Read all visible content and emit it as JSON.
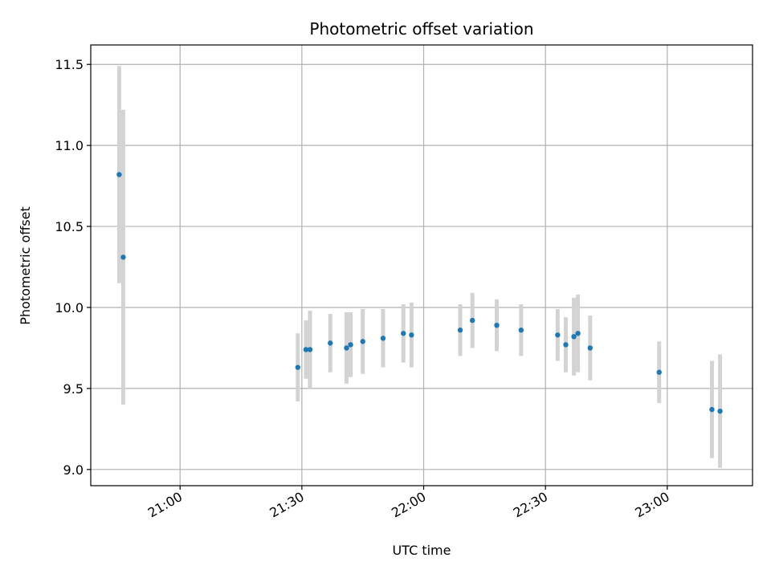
{
  "chart_data": {
    "type": "scatter",
    "title": "Photometric offset variation",
    "xlabel": "UTC time",
    "ylabel": "Photometric offset",
    "x_axis_kind": "time",
    "xlim": [
      "20:38",
      "23:21"
    ],
    "ylim": [
      8.9,
      11.62
    ],
    "grid": true,
    "x_ticks": [
      "21:00",
      "21:30",
      "22:00",
      "22:30",
      "23:00"
    ],
    "y_ticks": [
      "9.0",
      "9.5",
      "10.0",
      "10.5",
      "11.0",
      "11.5"
    ],
    "marker_color": "#1f77b4",
    "errorbar_color": "#d3d3d3",
    "points": [
      {
        "x": "20:45",
        "y": 10.82,
        "err": 0.67
      },
      {
        "x": "20:46",
        "y": 10.31,
        "err": 0.91
      },
      {
        "x": "21:29",
        "y": 9.63,
        "err": 0.21
      },
      {
        "x": "21:31",
        "y": 9.74,
        "err": 0.18
      },
      {
        "x": "21:32",
        "y": 9.74,
        "err": 0.24
      },
      {
        "x": "21:37",
        "y": 9.78,
        "err": 0.18
      },
      {
        "x": "21:41",
        "y": 9.75,
        "err": 0.22
      },
      {
        "x": "21:42",
        "y": 9.77,
        "err": 0.2
      },
      {
        "x": "21:45",
        "y": 9.79,
        "err": 0.2
      },
      {
        "x": "21:50",
        "y": 9.81,
        "err": 0.18
      },
      {
        "x": "21:55",
        "y": 9.84,
        "err": 0.18
      },
      {
        "x": "21:57",
        "y": 9.83,
        "err": 0.2
      },
      {
        "x": "22:09",
        "y": 9.86,
        "err": 0.16
      },
      {
        "x": "22:12",
        "y": 9.92,
        "err": 0.17
      },
      {
        "x": "22:18",
        "y": 9.89,
        "err": 0.16
      },
      {
        "x": "22:24",
        "y": 9.86,
        "err": 0.16
      },
      {
        "x": "22:33",
        "y": 9.83,
        "err": 0.16
      },
      {
        "x": "22:35",
        "y": 9.77,
        "err": 0.17
      },
      {
        "x": "22:37",
        "y": 9.82,
        "err": 0.24
      },
      {
        "x": "22:38",
        "y": 9.84,
        "err": 0.24
      },
      {
        "x": "22:41",
        "y": 9.75,
        "err": 0.2
      },
      {
        "x": "22:58",
        "y": 9.6,
        "err": 0.19
      },
      {
        "x": "23:11",
        "y": 9.37,
        "err": 0.3
      },
      {
        "x": "23:13",
        "y": 9.36,
        "err": 0.35
      }
    ]
  }
}
